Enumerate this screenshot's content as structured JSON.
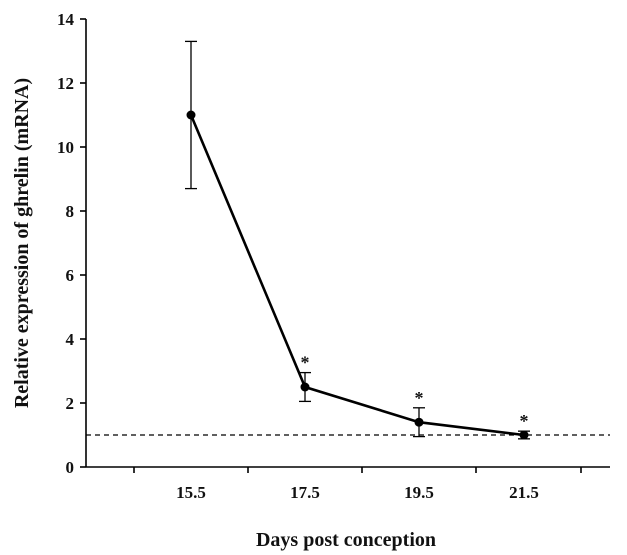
{
  "chart_data": {
    "type": "line",
    "xlabel": "Days post conception",
    "ylabel": "Relative expression of ghrelin (mRNA)",
    "x": [
      "15.5",
      "17.5",
      "19.5",
      "21.5"
    ],
    "series": [
      {
        "values": [
          11.0,
          2.5,
          1.4,
          1.0
        ],
        "error_low": [
          8.7,
          2.05,
          0.95,
          0.88
        ],
        "error_high": [
          13.3,
          2.95,
          1.85,
          1.12
        ],
        "significance": [
          "",
          "*",
          "*",
          "*"
        ]
      }
    ],
    "reference_line": {
      "y": 1,
      "style": "dashed"
    },
    "ylim": [
      0,
      14
    ],
    "yticks": [
      "0",
      "2",
      "4",
      "6",
      "8",
      "10",
      "12",
      "14"
    ],
    "grid": false,
    "legend": "none",
    "colors": {
      "line": "#000000",
      "axis": "#000000"
    }
  }
}
